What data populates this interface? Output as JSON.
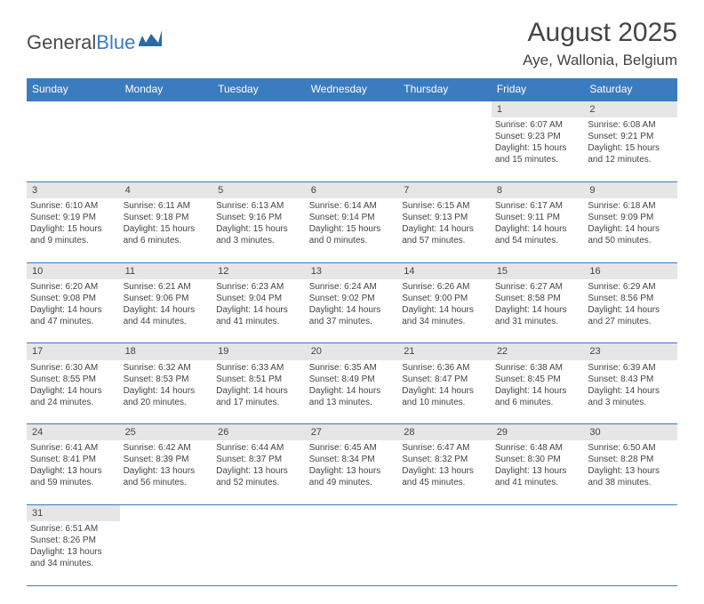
{
  "header": {
    "logo_part1": "General",
    "logo_part2": "Blue",
    "month_title": "August 2025",
    "location": "Aye, Wallonia, Belgium"
  },
  "colors": {
    "header_bg": "#3b7bbf",
    "header_text": "#ffffff",
    "daynum_bg": "#e6e6e6",
    "text": "#444444",
    "border": "#3b7bbf"
  },
  "weekdays": [
    "Sunday",
    "Monday",
    "Tuesday",
    "Wednesday",
    "Thursday",
    "Friday",
    "Saturday"
  ],
  "weeks": [
    [
      null,
      null,
      null,
      null,
      null,
      {
        "n": "1",
        "sr": "Sunrise: 6:07 AM",
        "ss": "Sunset: 9:23 PM",
        "dl1": "Daylight: 15 hours",
        "dl2": "and 15 minutes."
      },
      {
        "n": "2",
        "sr": "Sunrise: 6:08 AM",
        "ss": "Sunset: 9:21 PM",
        "dl1": "Daylight: 15 hours",
        "dl2": "and 12 minutes."
      }
    ],
    [
      {
        "n": "3",
        "sr": "Sunrise: 6:10 AM",
        "ss": "Sunset: 9:19 PM",
        "dl1": "Daylight: 15 hours",
        "dl2": "and 9 minutes."
      },
      {
        "n": "4",
        "sr": "Sunrise: 6:11 AM",
        "ss": "Sunset: 9:18 PM",
        "dl1": "Daylight: 15 hours",
        "dl2": "and 6 minutes."
      },
      {
        "n": "5",
        "sr": "Sunrise: 6:13 AM",
        "ss": "Sunset: 9:16 PM",
        "dl1": "Daylight: 15 hours",
        "dl2": "and 3 minutes."
      },
      {
        "n": "6",
        "sr": "Sunrise: 6:14 AM",
        "ss": "Sunset: 9:14 PM",
        "dl1": "Daylight: 15 hours",
        "dl2": "and 0 minutes."
      },
      {
        "n": "7",
        "sr": "Sunrise: 6:15 AM",
        "ss": "Sunset: 9:13 PM",
        "dl1": "Daylight: 14 hours",
        "dl2": "and 57 minutes."
      },
      {
        "n": "8",
        "sr": "Sunrise: 6:17 AM",
        "ss": "Sunset: 9:11 PM",
        "dl1": "Daylight: 14 hours",
        "dl2": "and 54 minutes."
      },
      {
        "n": "9",
        "sr": "Sunrise: 6:18 AM",
        "ss": "Sunset: 9:09 PM",
        "dl1": "Daylight: 14 hours",
        "dl2": "and 50 minutes."
      }
    ],
    [
      {
        "n": "10",
        "sr": "Sunrise: 6:20 AM",
        "ss": "Sunset: 9:08 PM",
        "dl1": "Daylight: 14 hours",
        "dl2": "and 47 minutes."
      },
      {
        "n": "11",
        "sr": "Sunrise: 6:21 AM",
        "ss": "Sunset: 9:06 PM",
        "dl1": "Daylight: 14 hours",
        "dl2": "and 44 minutes."
      },
      {
        "n": "12",
        "sr": "Sunrise: 6:23 AM",
        "ss": "Sunset: 9:04 PM",
        "dl1": "Daylight: 14 hours",
        "dl2": "and 41 minutes."
      },
      {
        "n": "13",
        "sr": "Sunrise: 6:24 AM",
        "ss": "Sunset: 9:02 PM",
        "dl1": "Daylight: 14 hours",
        "dl2": "and 37 minutes."
      },
      {
        "n": "14",
        "sr": "Sunrise: 6:26 AM",
        "ss": "Sunset: 9:00 PM",
        "dl1": "Daylight: 14 hours",
        "dl2": "and 34 minutes."
      },
      {
        "n": "15",
        "sr": "Sunrise: 6:27 AM",
        "ss": "Sunset: 8:58 PM",
        "dl1": "Daylight: 14 hours",
        "dl2": "and 31 minutes."
      },
      {
        "n": "16",
        "sr": "Sunrise: 6:29 AM",
        "ss": "Sunset: 8:56 PM",
        "dl1": "Daylight: 14 hours",
        "dl2": "and 27 minutes."
      }
    ],
    [
      {
        "n": "17",
        "sr": "Sunrise: 6:30 AM",
        "ss": "Sunset: 8:55 PM",
        "dl1": "Daylight: 14 hours",
        "dl2": "and 24 minutes."
      },
      {
        "n": "18",
        "sr": "Sunrise: 6:32 AM",
        "ss": "Sunset: 8:53 PM",
        "dl1": "Daylight: 14 hours",
        "dl2": "and 20 minutes."
      },
      {
        "n": "19",
        "sr": "Sunrise: 6:33 AM",
        "ss": "Sunset: 8:51 PM",
        "dl1": "Daylight: 14 hours",
        "dl2": "and 17 minutes."
      },
      {
        "n": "20",
        "sr": "Sunrise: 6:35 AM",
        "ss": "Sunset: 8:49 PM",
        "dl1": "Daylight: 14 hours",
        "dl2": "and 13 minutes."
      },
      {
        "n": "21",
        "sr": "Sunrise: 6:36 AM",
        "ss": "Sunset: 8:47 PM",
        "dl1": "Daylight: 14 hours",
        "dl2": "and 10 minutes."
      },
      {
        "n": "22",
        "sr": "Sunrise: 6:38 AM",
        "ss": "Sunset: 8:45 PM",
        "dl1": "Daylight: 14 hours",
        "dl2": "and 6 minutes."
      },
      {
        "n": "23",
        "sr": "Sunrise: 6:39 AM",
        "ss": "Sunset: 8:43 PM",
        "dl1": "Daylight: 14 hours",
        "dl2": "and 3 minutes."
      }
    ],
    [
      {
        "n": "24",
        "sr": "Sunrise: 6:41 AM",
        "ss": "Sunset: 8:41 PM",
        "dl1": "Daylight: 13 hours",
        "dl2": "and 59 minutes."
      },
      {
        "n": "25",
        "sr": "Sunrise: 6:42 AM",
        "ss": "Sunset: 8:39 PM",
        "dl1": "Daylight: 13 hours",
        "dl2": "and 56 minutes."
      },
      {
        "n": "26",
        "sr": "Sunrise: 6:44 AM",
        "ss": "Sunset: 8:37 PM",
        "dl1": "Daylight: 13 hours",
        "dl2": "and 52 minutes."
      },
      {
        "n": "27",
        "sr": "Sunrise: 6:45 AM",
        "ss": "Sunset: 8:34 PM",
        "dl1": "Daylight: 13 hours",
        "dl2": "and 49 minutes."
      },
      {
        "n": "28",
        "sr": "Sunrise: 6:47 AM",
        "ss": "Sunset: 8:32 PM",
        "dl1": "Daylight: 13 hours",
        "dl2": "and 45 minutes."
      },
      {
        "n": "29",
        "sr": "Sunrise: 6:48 AM",
        "ss": "Sunset: 8:30 PM",
        "dl1": "Daylight: 13 hours",
        "dl2": "and 41 minutes."
      },
      {
        "n": "30",
        "sr": "Sunrise: 6:50 AM",
        "ss": "Sunset: 8:28 PM",
        "dl1": "Daylight: 13 hours",
        "dl2": "and 38 minutes."
      }
    ],
    [
      {
        "n": "31",
        "sr": "Sunrise: 6:51 AM",
        "ss": "Sunset: 8:26 PM",
        "dl1": "Daylight: 13 hours",
        "dl2": "and 34 minutes."
      },
      null,
      null,
      null,
      null,
      null,
      null
    ]
  ]
}
